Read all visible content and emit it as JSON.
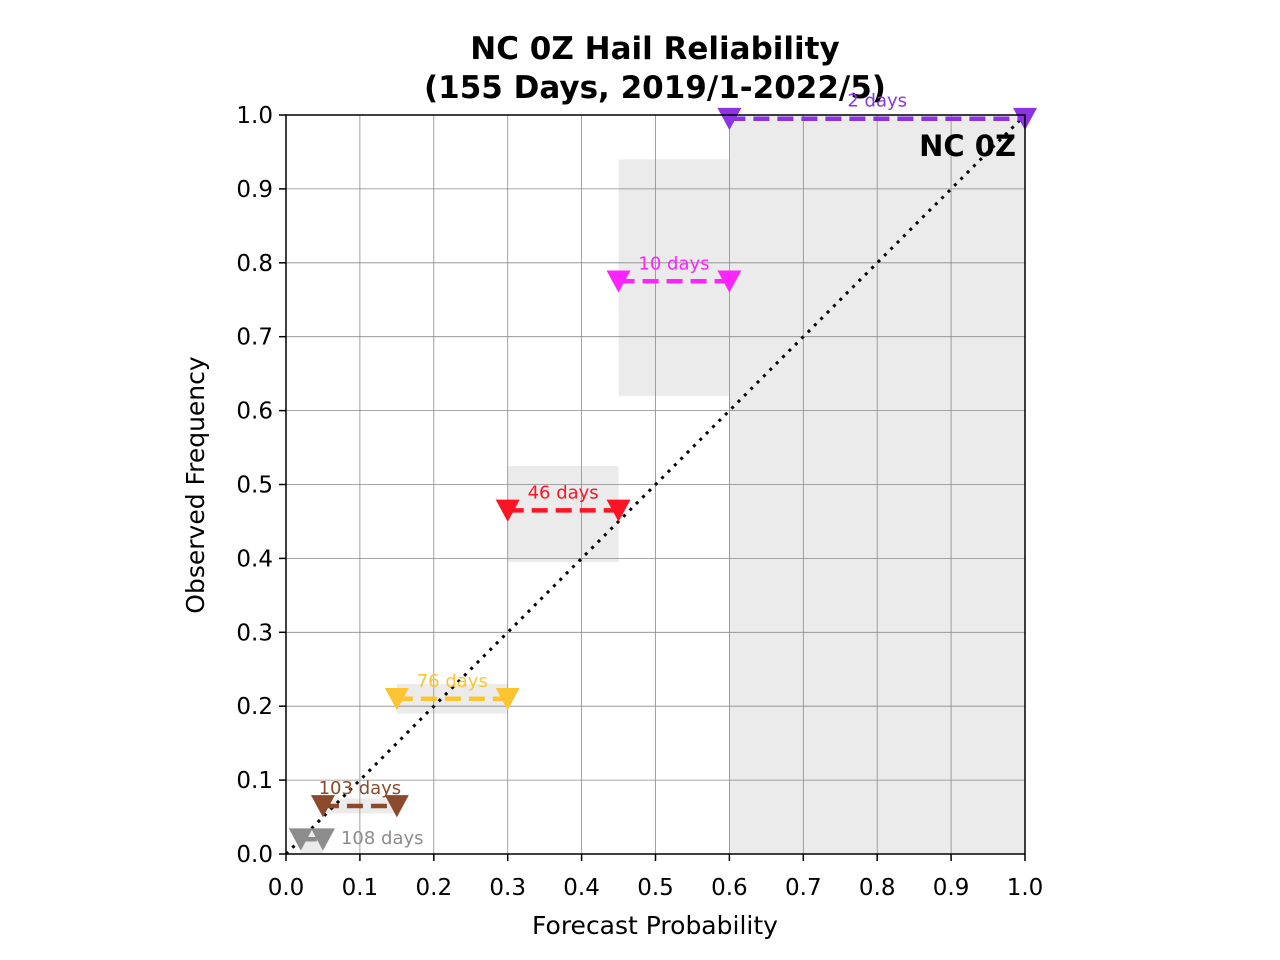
{
  "chart_data": {
    "type": "scatter",
    "title_lines": [
      "NC 0Z Hail Reliability",
      "(155 Days, 2019/1-2022/5)"
    ],
    "xlabel": "Forecast Probability",
    "ylabel": "Observed Frequency",
    "xlim": [
      0,
      1
    ],
    "ylim": [
      0,
      1
    ],
    "x_ticks": [
      "0.0",
      "0.1",
      "0.2",
      "0.3",
      "0.4",
      "0.5",
      "0.6",
      "0.7",
      "0.8",
      "0.9",
      "1.0"
    ],
    "y_ticks": [
      "0.0",
      "0.1",
      "0.2",
      "0.3",
      "0.4",
      "0.5",
      "0.6",
      "0.7",
      "0.8",
      "0.9",
      "1.0"
    ],
    "grid": true,
    "panel_label": "NC 0Z",
    "perfect_reliability_line": {
      "from": [
        0,
        0
      ],
      "to": [
        1,
        1
      ],
      "style": "dotted",
      "color": "#000000"
    },
    "bins": [
      {
        "x_start": 0.02,
        "x_end": 0.05,
        "observed": 0.02,
        "band": [
          0.0,
          0.03
        ],
        "label": "108 days",
        "label_position": "right",
        "color": "#8c8c8c"
      },
      {
        "x_start": 0.05,
        "x_end": 0.15,
        "observed": 0.065,
        "band": [
          0.055,
          0.075
        ],
        "label": "103 days",
        "label_position": "above",
        "color": "#8b4a2c"
      },
      {
        "x_start": 0.15,
        "x_end": 0.3,
        "observed": 0.21,
        "band": [
          0.19,
          0.23
        ],
        "label": "76 days",
        "label_position": "above",
        "color": "#fcc431"
      },
      {
        "x_start": 0.3,
        "x_end": 0.45,
        "observed": 0.465,
        "band": [
          0.395,
          0.525
        ],
        "label": "46 days",
        "label_position": "above",
        "color": "#fc1424"
      },
      {
        "x_start": 0.45,
        "x_end": 0.6,
        "observed": 0.775,
        "band": [
          0.62,
          0.94
        ],
        "label": "10 days",
        "label_position": "above",
        "color": "#fc24fc"
      },
      {
        "x_start": 0.6,
        "x_end": 1.0,
        "observed": 0.995,
        "band": [
          0.0,
          1.0
        ],
        "label": "2 days",
        "label_position": "above",
        "color": "#8c34e4"
      }
    ]
  }
}
